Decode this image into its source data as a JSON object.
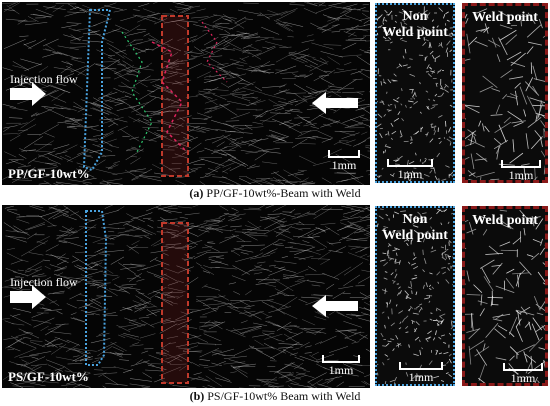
{
  "panels": [
    {
      "id": "a",
      "injection_label": "Injection flow",
      "material_label": "PP/GF-10wt%",
      "scale_main": "1mm",
      "crop_non_title": "Non\nWeld point",
      "crop_non_scale": "1mm",
      "crop_weld_title": "Weld point",
      "crop_weld_scale": "1mm",
      "caption_tag": "(a)",
      "caption_text": " PP/GF-10wt%-Beam with Weld"
    },
    {
      "id": "b",
      "injection_label": "Injection flow",
      "material_label": "PS/GF-10wt%",
      "scale_main": "1mm",
      "crop_non_title": "Non\nWeld point",
      "crop_non_scale": "1mm",
      "crop_weld_title": "Weld point",
      "crop_weld_scale": "1mm",
      "caption_tag": "(b)",
      "caption_text": " PS/GF-10wt% Beam with Weld"
    }
  ],
  "colors": {
    "non_weld_frame": "#4aa3df",
    "weld_frame": "#8b1a1a",
    "flow_trace_red": "#e0245e",
    "flow_trace_green": "#2ecc71"
  }
}
